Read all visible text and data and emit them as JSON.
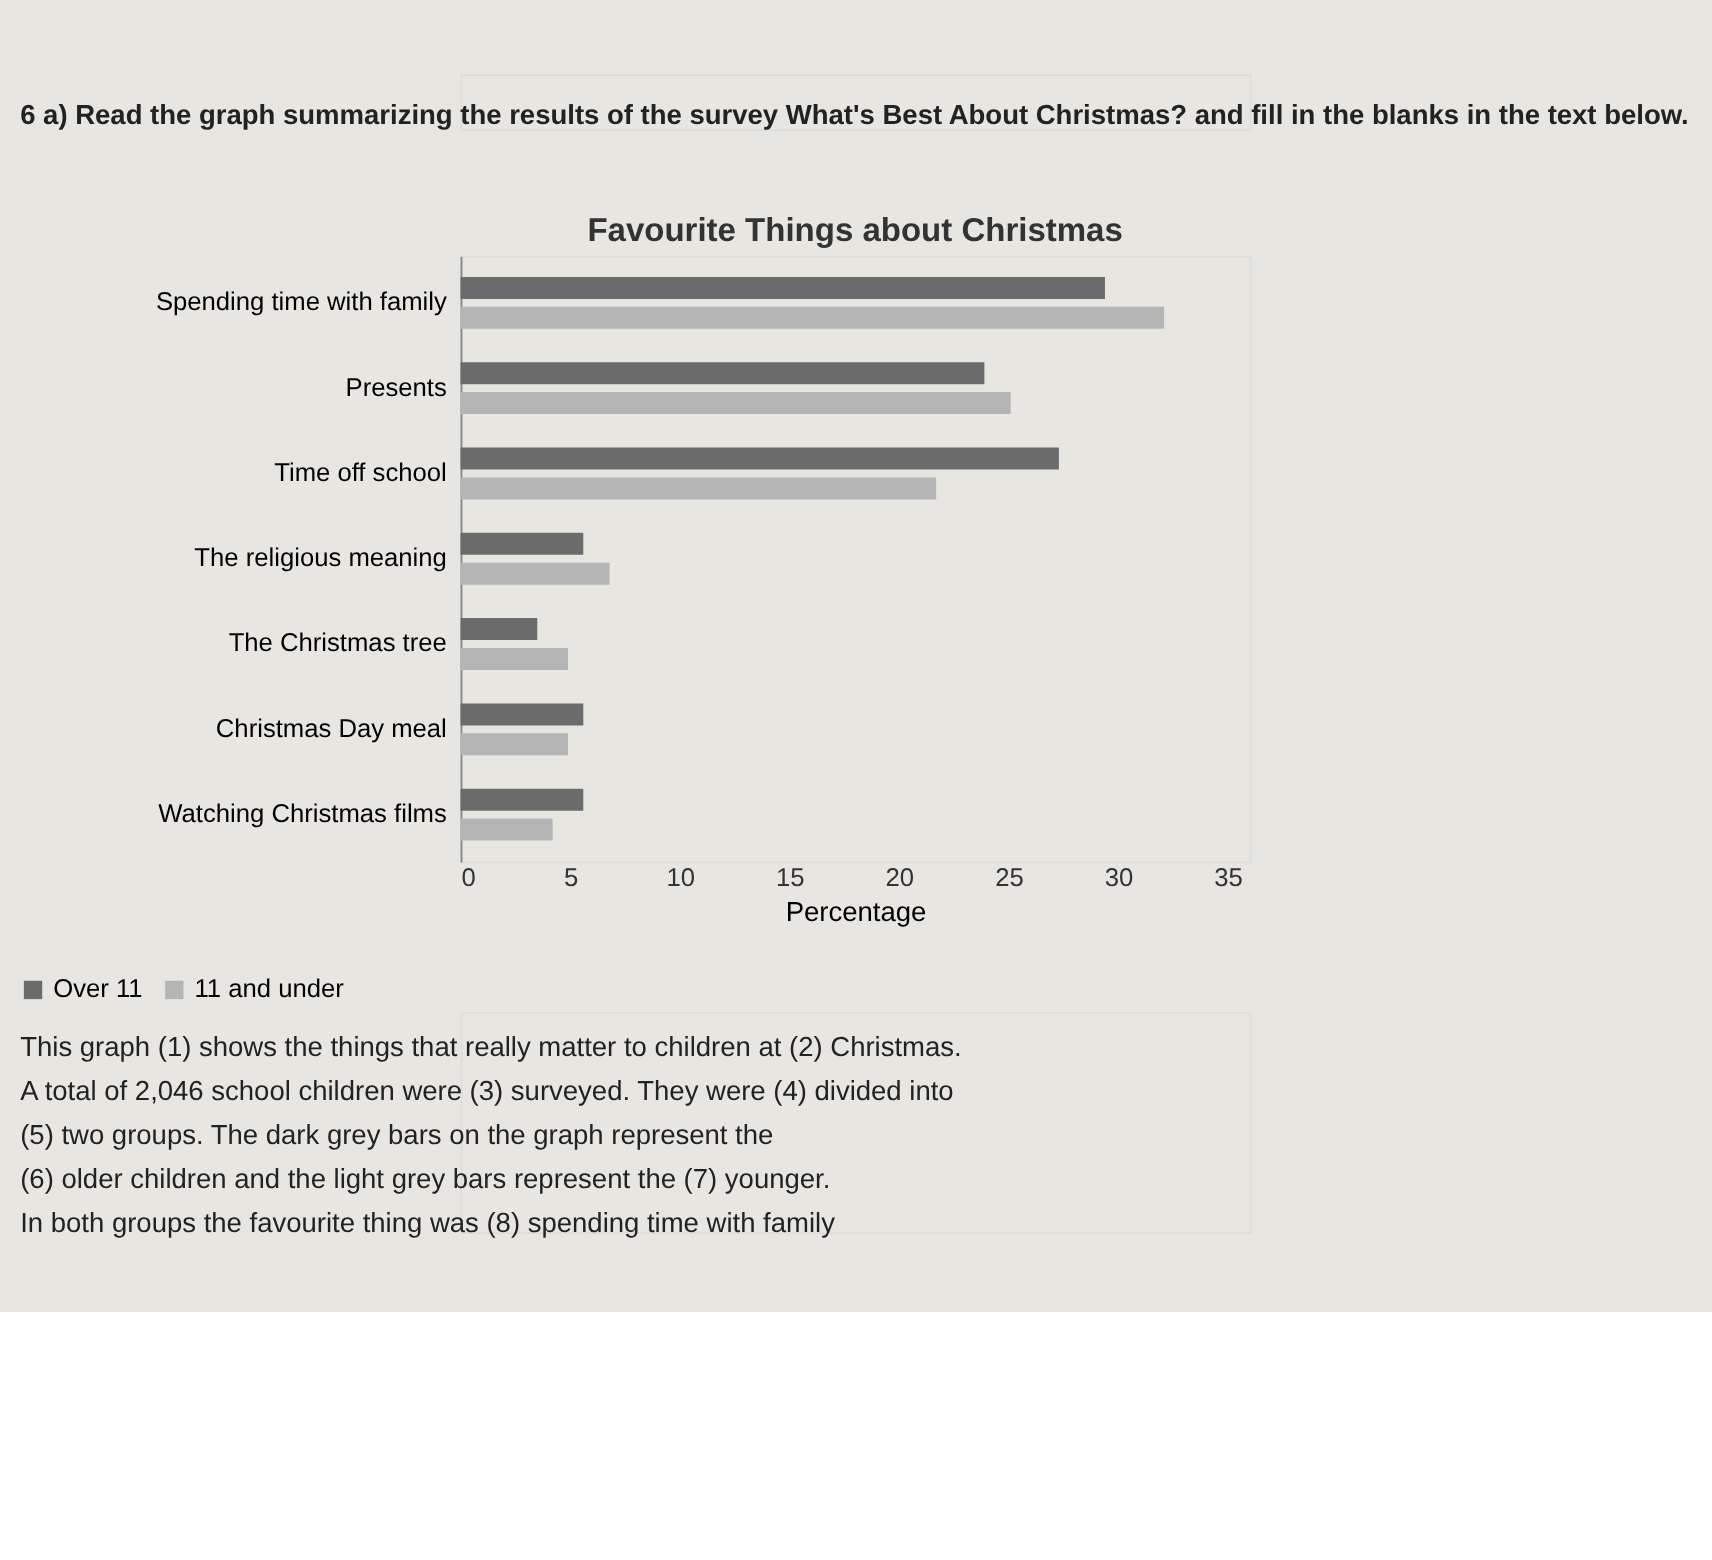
{
  "chart_data": {
    "type": "bar",
    "orientation": "horizontal",
    "title": "Favourite Things about Christmas",
    "xlabel": "Percentage",
    "categories": [
      "Spending time with family",
      "Presents",
      "Time off school",
      "The religious meaning",
      "The Christmas tree",
      "Christmas Day meal",
      "Watching Christmas films"
    ],
    "series": [
      {
        "name": "Over 11",
        "color": "#6b6b6b",
        "values": [
          29.4,
          23.9,
          27.3,
          5.6,
          3.5,
          5.6,
          5.6
        ]
      },
      {
        "name": "11 and under",
        "color": "#b5b5b5",
        "values": [
          32.1,
          25.1,
          21.7,
          6.8,
          4.9,
          4.9,
          4.2
        ]
      }
    ],
    "xlim": [
      0,
      36
    ],
    "xticks": [
      0,
      5,
      10,
      15,
      20,
      25,
      30,
      35
    ],
    "grid": false,
    "legend": "bottom left",
    "annotations": [
      "6 a) Read the graph summarizing the results of the survey What's Best About Christmas? and fill in the blanks in the text below.",
      "This graph (1) shows the things that really matter to children at (2) Christmas.",
      "A total of 2,046 school children were (3) surveyed. They were (4) divided into",
      "(5) two groups. The dark grey bars on the graph represent the",
      "(6) older children and the light grey bars represent the (7) younger.",
      "In both groups the favourite thing was (8) spending time with family"
    ]
  }
}
